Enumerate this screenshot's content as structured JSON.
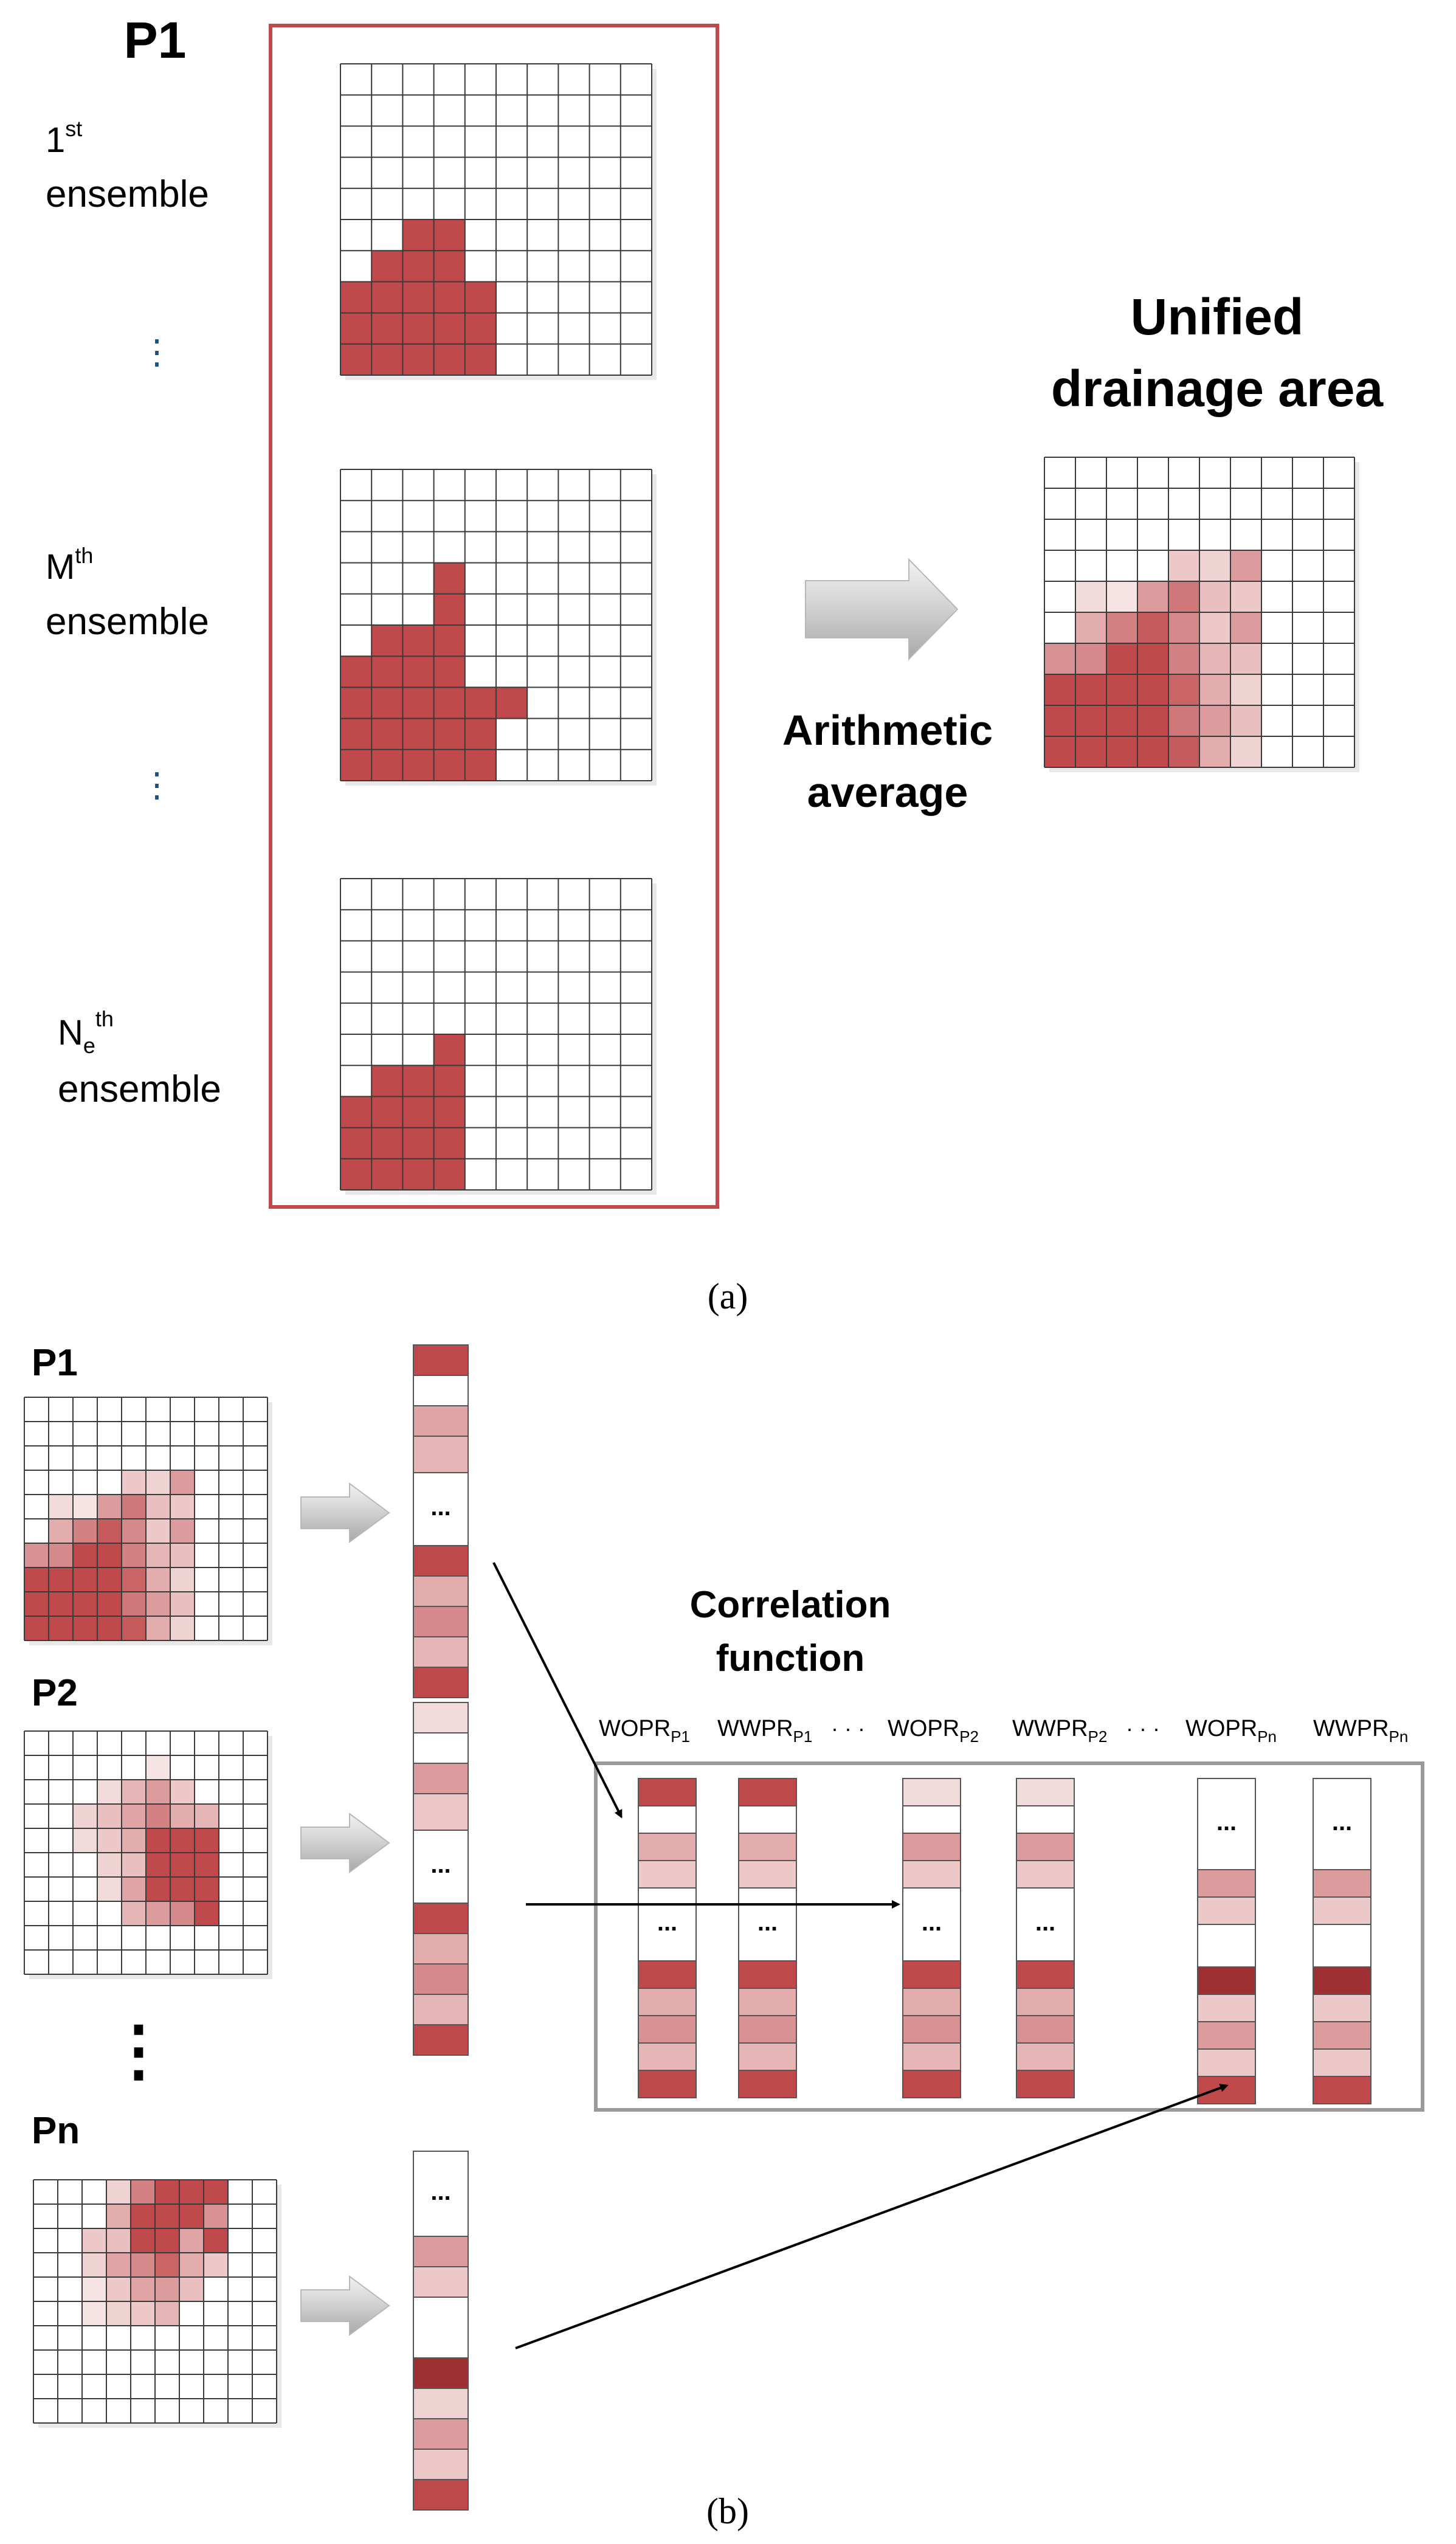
{
  "colors": {
    "dark_red": "#c0494c",
    "deep_red": "#9e2f33",
    "box_border": "#c0494c",
    "grid_line": "#333333",
    "frame_gray": "#9a9a9a",
    "arrow_gray": "#c8c8c8"
  },
  "panel_a": {
    "title": "P1",
    "ensembles": [
      {
        "num": "1",
        "sub": "",
        "sup": "st",
        "label": "ensemble"
      },
      {
        "num": "M",
        "sub": "",
        "sup": "th",
        "label": "ensemble"
      },
      {
        "num": "N",
        "sub": "e",
        "sup": "th",
        "label": "ensemble"
      }
    ],
    "ellipsis": "⋮",
    "operation_line1": "Arithmetic",
    "operation_line2": "average",
    "result_line1": "Unified",
    "result_line2": "drainage area",
    "caption": "(a)"
  },
  "panel_b": {
    "wells": [
      "P1",
      "P2",
      "Pn"
    ],
    "ellipsis": "⋮",
    "vector_ellipsis": "...",
    "correlation_line1": "Correlation",
    "correlation_line2": "function",
    "columns": [
      {
        "base": "WOPR",
        "sub": "P1"
      },
      {
        "base": "WWPR",
        "sub": "P1"
      },
      {
        "base": "WOPR",
        "sub": "P2"
      },
      {
        "base": "WWPR",
        "sub": "P2"
      },
      {
        "base": "WOPR",
        "sub": "Pn"
      },
      {
        "base": "WWPR",
        "sub": "Pn"
      }
    ],
    "column_dots": "· · ·",
    "caption": "(b)"
  }
}
